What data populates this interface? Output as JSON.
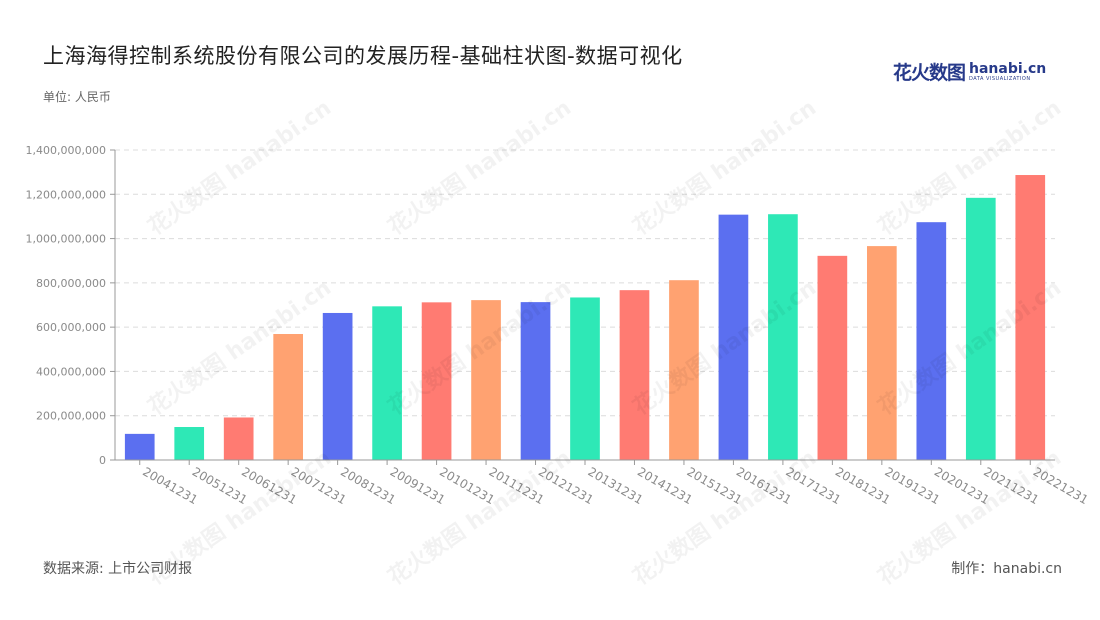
{
  "header": {
    "title": "上海海得控制系统股份有限公司的发展历程-基础柱状图-数据可视化",
    "unit": "单位: 人民币"
  },
  "logo": {
    "cn": "花火数图",
    "en": "hanabi.cn",
    "sub": "DATA VISUALIZATION"
  },
  "footer": {
    "source": "数据来源: 上市公司财报",
    "credit": "制作：hanabi.cn"
  },
  "watermark": "花火数图 hanabi.cn",
  "colors": {
    "blue": "#5b6ff0",
    "green": "#2ee8b6",
    "red": "#ff7b72",
    "orange": "#ffa271",
    "grid": "#dcdcdc",
    "axis": "#999999",
    "tick_text": "#8a8a8a"
  },
  "chart_data": {
    "type": "bar",
    "title": "",
    "xlabel": "",
    "ylabel": "",
    "ylim": [
      0,
      1400000000
    ],
    "yticks": [
      0,
      200000000,
      400000000,
      600000000,
      800000000,
      1000000000,
      1200000000,
      1400000000
    ],
    "ytick_labels": [
      "0",
      "200,000,000",
      "400,000,000",
      "600,000,000",
      "800,000,000",
      "1,000,000,000",
      "1,200,000,000",
      "1,400,000,000"
    ],
    "grid": true,
    "categories": [
      "20041231",
      "20051231",
      "20061231",
      "20071231",
      "20081231",
      "20091231",
      "20101231",
      "20111231",
      "20121231",
      "20131231",
      "20141231",
      "20151231",
      "20161231",
      "20171231",
      "20181231",
      "20191231",
      "20201231",
      "20211231",
      "20221231"
    ],
    "values": [
      118000000,
      149000000,
      192000000,
      569000000,
      664000000,
      694000000,
      712000000,
      722000000,
      713000000,
      734000000,
      767000000,
      812000000,
      1108000000,
      1110000000,
      922000000,
      966000000,
      1074000000,
      1184000000,
      1287000000
    ],
    "bar_colors": [
      "#5b6ff0",
      "#2ee8b6",
      "#ff7b72",
      "#ffa271",
      "#5b6ff0",
      "#2ee8b6",
      "#ff7b72",
      "#ffa271",
      "#5b6ff0",
      "#2ee8b6",
      "#ff7b72",
      "#ffa271",
      "#5b6ff0",
      "#2ee8b6",
      "#ff7b72",
      "#ffa271",
      "#5b6ff0",
      "#2ee8b6",
      "#ff7b72"
    ]
  }
}
